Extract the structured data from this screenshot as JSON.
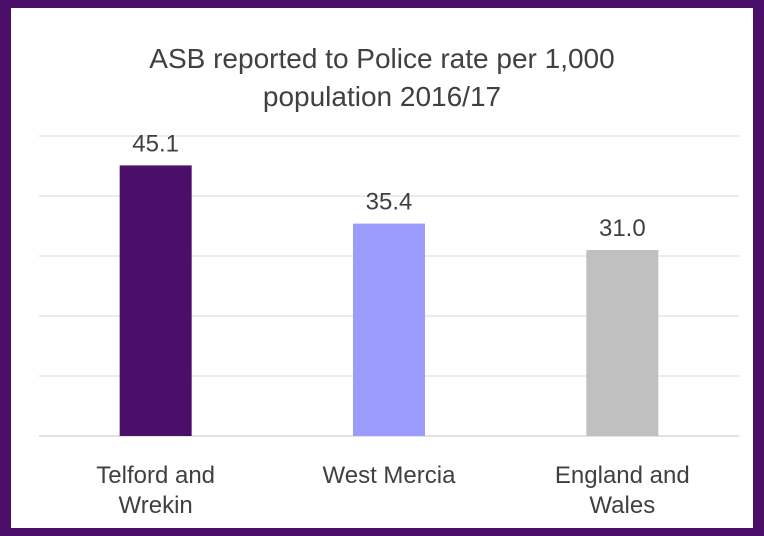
{
  "colors": {
    "frame": "#4b0f6a",
    "gridline": "#d9d9d9",
    "axis": "#d9d9d9",
    "text": "#404040"
  },
  "chart_data": {
    "type": "bar",
    "title_lines": [
      "ASB reported to Police rate per 1,000",
      "population 2016/17"
    ],
    "categories": [
      [
        "Telford and",
        "Wrekin"
      ],
      [
        "West Mercia"
      ],
      [
        "England and",
        "Wales"
      ]
    ],
    "values": [
      45.1,
      35.4,
      31.0
    ],
    "data_labels": [
      "45.1",
      "35.4",
      "31.0"
    ],
    "bar_colors": [
      "#4b0f6a",
      "#9c9cff",
      "#c0c0c0"
    ],
    "ylim": [
      0,
      50
    ],
    "ytick_step": 10,
    "y_axis_labels_shown": false,
    "grid": true,
    "legend": "none"
  }
}
